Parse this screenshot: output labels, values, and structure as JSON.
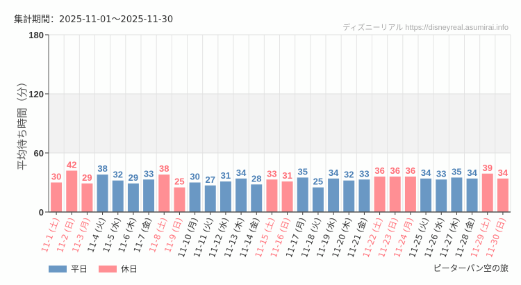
{
  "header": {
    "period": "集計期間：2025-11-01〜2025-11-30",
    "credit": "ディズニーリアル https://disneyreal.asumirai.info"
  },
  "footer": {
    "attraction": "ピーターパン空の旅"
  },
  "colors": {
    "weekday": "#6a98c4",
    "holiday": "#ff8f94",
    "weekday_text": "#4a7fb5",
    "holiday_text": "#ff6f78",
    "band": "#f2f2f2"
  },
  "chart_data": {
    "type": "bar",
    "ylabel": "平均待ち時間（分）",
    "ylim": [
      0,
      180
    ],
    "yticks": [
      0,
      60,
      120,
      180
    ],
    "shaded_range": [
      60,
      120
    ],
    "legend": [
      {
        "name": "平日",
        "key": "weekday"
      },
      {
        "name": "休日",
        "key": "holiday"
      }
    ],
    "legend_position": "bottom-left",
    "categories": [
      "11-1 (土)",
      "11-2 (日)",
      "11-3 (月)",
      "11-4 (火)",
      "11-5 (水)",
      "11-6 (木)",
      "11-7 (金)",
      "11-8 (土)",
      "11-9 (日)",
      "11-10 (月)",
      "11-11 (火)",
      "11-12 (水)",
      "11-13 (木)",
      "11-14 (金)",
      "11-15 (土)",
      "11-16 (日)",
      "11-17 (月)",
      "11-18 (火)",
      "11-19 (水)",
      "11-20 (木)",
      "11-21 (金)",
      "11-22 (土)",
      "11-23 (日)",
      "11-24 (月)",
      "11-25 (火)",
      "11-26 (水)",
      "11-27 (木)",
      "11-28 (金)",
      "11-29 (土)",
      "11-30 (日)"
    ],
    "values": [
      30,
      42,
      29,
      38,
      32,
      29,
      33,
      38,
      25,
      30,
      27,
      31,
      34,
      28,
      33,
      31,
      35,
      25,
      34,
      32,
      33,
      36,
      36,
      36,
      34,
      33,
      35,
      34,
      39,
      34
    ],
    "holiday": [
      true,
      true,
      true,
      false,
      false,
      false,
      false,
      true,
      true,
      false,
      false,
      false,
      false,
      false,
      true,
      true,
      false,
      false,
      false,
      false,
      false,
      true,
      true,
      true,
      false,
      false,
      false,
      false,
      true,
      true
    ]
  }
}
